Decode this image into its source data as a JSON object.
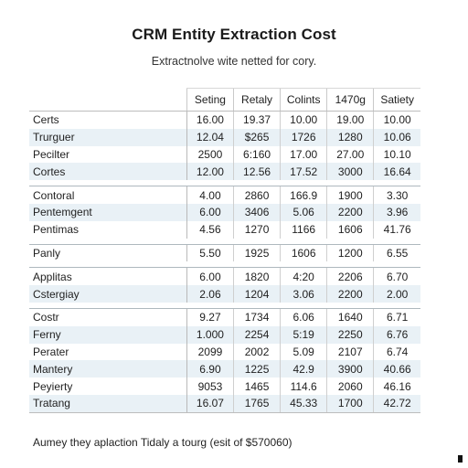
{
  "title": "CRM Entity Extraction Cost",
  "subtitle": "Extractnolve wite netted for cory.",
  "table": {
    "columns": [
      "Seting",
      "Retaly",
      "Colints",
      "1470g",
      "Satiety"
    ],
    "groups": [
      [
        {
          "label": "Certs",
          "values": [
            "16.00",
            "19.37",
            "10.00",
            "19.00",
            "10.00"
          ]
        },
        {
          "label": "Trurguer",
          "values": [
            "12.04",
            "$265",
            "1726",
            "1280",
            "10.06"
          ]
        },
        {
          "label": "Pecilter",
          "values": [
            "2500",
            "6:160",
            "17.00",
            "27.00",
            "10.10"
          ]
        },
        {
          "label": "Cortes",
          "values": [
            "12.00",
            "12.56",
            "17.52",
            "3000",
            "16.64"
          ]
        }
      ],
      [
        {
          "label": "Contoral",
          "values": [
            "4.00",
            "2860",
            "166.9",
            "1900",
            "3.30"
          ]
        },
        {
          "label": "Pentemgent",
          "values": [
            "6.00",
            "3406",
            "5.06",
            "2200",
            "3.96"
          ]
        },
        {
          "label": "Pentimas",
          "values": [
            "4.56",
            "1270",
            "1166",
            "1606",
            "41.76"
          ]
        }
      ],
      [
        {
          "label": "Panly",
          "values": [
            "5.50",
            "1925",
            "1606",
            "1200",
            "6.55"
          ]
        }
      ],
      [
        {
          "label": "Applitas",
          "values": [
            "6.00",
            "1820",
            "4:20",
            "2206",
            "6.70"
          ]
        },
        {
          "label": "Cstergiay",
          "values": [
            "2.06",
            "1204",
            "3.06",
            "2200",
            "2.00"
          ]
        }
      ],
      [
        {
          "label": "Costr",
          "values": [
            "9.27",
            "1734",
            "6.06",
            "1640",
            "6.71"
          ]
        },
        {
          "label": "Ferny",
          "values": [
            "1.000",
            "2254",
            "5:19",
            "2250",
            "6.76"
          ]
        },
        {
          "label": "Perater",
          "values": [
            "2099",
            "2002",
            "5.09",
            "2107",
            "6.74"
          ]
        },
        {
          "label": "Mantery",
          "values": [
            "6.90",
            "1225",
            "42.9",
            "3900",
            "40.66"
          ]
        },
        {
          "label": "Peyierty",
          "values": [
            "9053",
            "1465",
            "114.6",
            "2060",
            "46.16"
          ]
        },
        {
          "label": "Tratang",
          "values": [
            "16.07",
            "1765",
            "45.33",
            "1700",
            "42.72"
          ]
        }
      ]
    ]
  },
  "footnote": "Aumey they aplaction Tidaly a tourg (esit of $570060)"
}
